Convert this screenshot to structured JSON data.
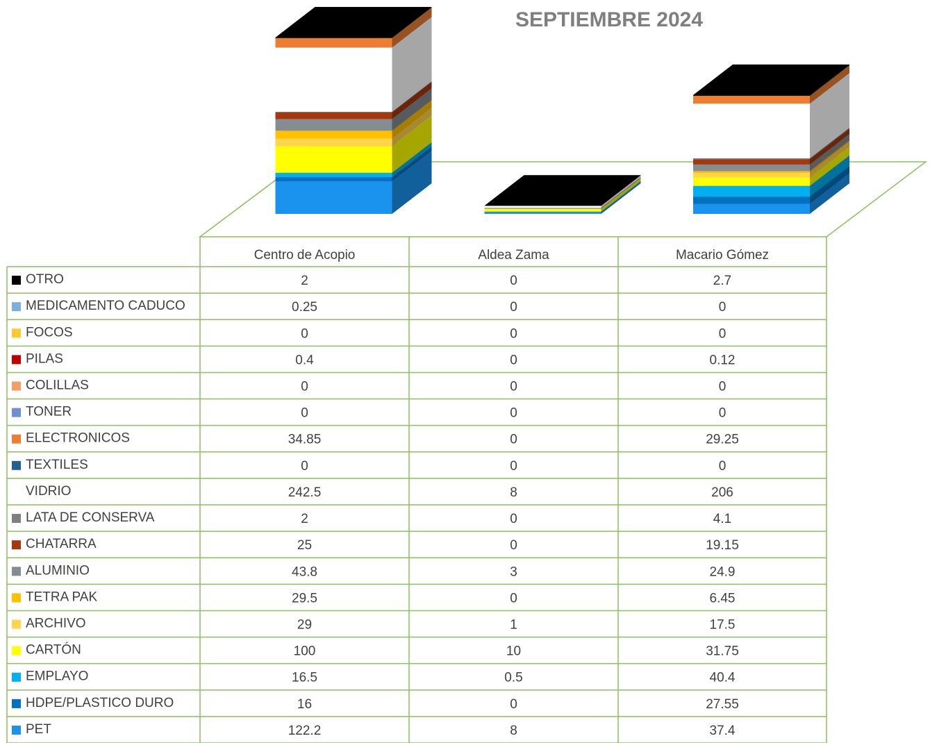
{
  "chart_data": {
    "type": "bar",
    "stacked": true,
    "title": "SEPTIEMBRE 2024",
    "categories": [
      "Centro de Acopio",
      "Aldea Zama",
      "Macario Gómez"
    ],
    "series": [
      {
        "name": "OTRO",
        "color": "#000000",
        "values": [
          2,
          0,
          2.7
        ]
      },
      {
        "name": "MEDICAMENTO CADUCO",
        "color": "#7cafdd",
        "values": [
          0.25,
          0,
          0
        ]
      },
      {
        "name": "FOCOS",
        "color": "#ffc934",
        "values": [
          0,
          0,
          0
        ]
      },
      {
        "name": "PILAS",
        "color": "#c00000",
        "values": [
          0.4,
          0,
          0.12
        ]
      },
      {
        "name": "COLILLAS",
        "color": "#f19e67",
        "values": [
          0,
          0,
          0
        ]
      },
      {
        "name": "TONER",
        "color": "#6e8fd0",
        "values": [
          0,
          0,
          0
        ]
      },
      {
        "name": "ELECTRONICOS",
        "color": "#ed7d31",
        "values": [
          34.85,
          0,
          29.25
        ]
      },
      {
        "name": "TEXTILES",
        "color": "#255e91",
        "values": [
          0,
          0,
          0
        ]
      },
      {
        "name": "VIDRIO",
        "color": "#ffffff",
        "values": [
          242.5,
          8,
          206
        ]
      },
      {
        "name": "LATA DE CONSERVA",
        "color": "#7f7f7f",
        "values": [
          2,
          0,
          4.1
        ]
      },
      {
        "name": "CHATARRA",
        "color": "#a5380d",
        "values": [
          25,
          0,
          19.15
        ]
      },
      {
        "name": "ALUMINIO",
        "color": "#848c94",
        "values": [
          43.8,
          3,
          24.9
        ]
      },
      {
        "name": "TETRA PAK",
        "color": "#ffc000",
        "values": [
          29.5,
          0,
          6.45
        ]
      },
      {
        "name": "ARCHIVO",
        "color": "#ffd54f",
        "values": [
          29,
          1,
          17.5
        ]
      },
      {
        "name": "CARTÓN",
        "color": "#ffff00",
        "values": [
          100,
          10,
          31.75
        ]
      },
      {
        "name": "EMPLAYO",
        "color": "#00b0f0",
        "values": [
          16.5,
          0.5,
          40.4
        ]
      },
      {
        "name": "HDPE/PLASTICO DURO",
        "color": "#0070c0",
        "values": [
          16,
          0,
          27.55
        ]
      },
      {
        "name": "PET",
        "color": "#1a93ee",
        "values": [
          122.2,
          8,
          37.4
        ]
      }
    ]
  }
}
